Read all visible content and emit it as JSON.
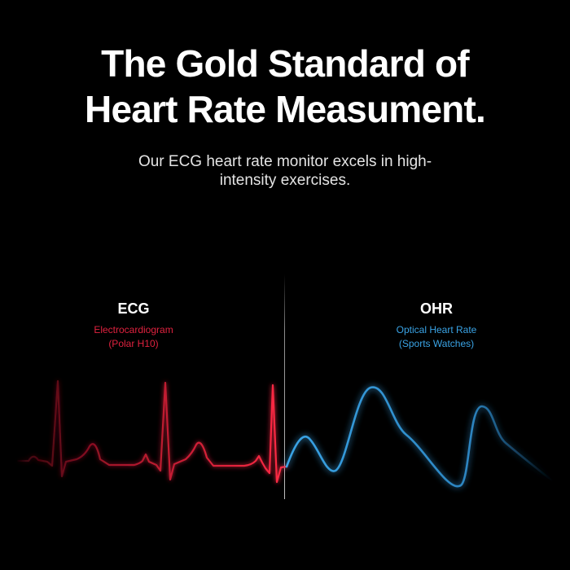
{
  "headline": {
    "line1": "The Gold Standard of",
    "line2": "Heart Rate Measument."
  },
  "subtitle": "Our ECG heart rate monitor excels in high-intensity exercises.",
  "ecg": {
    "name": "ECG",
    "description_line1": "Electrocardiogram",
    "description_line2": "(Polar H10)",
    "color": "#e0223f"
  },
  "ohr": {
    "name": "OHR",
    "description_line1": "Optical Heart Rate",
    "description_line2": "(Sports Watches)",
    "color": "#3aa4e6"
  },
  "colors": {
    "background": "#000000",
    "text": "#ffffff"
  }
}
